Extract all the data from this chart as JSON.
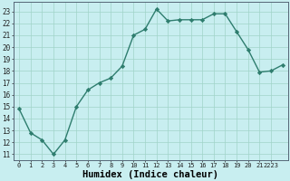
{
  "x": [
    0,
    1,
    2,
    3,
    4,
    5,
    6,
    7,
    8,
    9,
    10,
    11,
    12,
    13,
    14,
    15,
    16,
    17,
    18,
    19,
    20,
    21,
    22,
    23
  ],
  "y": [
    14.8,
    12.8,
    12.2,
    11.0,
    12.2,
    15.0,
    16.4,
    17.0,
    17.4,
    18.4,
    21.0,
    21.5,
    23.2,
    22.2,
    22.3,
    22.3,
    22.3,
    22.8,
    22.8,
    21.3,
    19.8,
    17.9,
    18.0,
    18.5
  ],
  "line_color": "#2e7d6e",
  "marker": "D",
  "markersize": 2.2,
  "linewidth": 1.0,
  "bg_color": "#c8eef0",
  "grid_color": "#a0d4c8",
  "xlabel": "Humidex (Indice chaleur)",
  "xlabel_fontsize": 7.5,
  "ytick_min": 11,
  "ytick_max": 23,
  "ylim": [
    10.5,
    23.8
  ],
  "xlim": [
    -0.5,
    23.5
  ]
}
